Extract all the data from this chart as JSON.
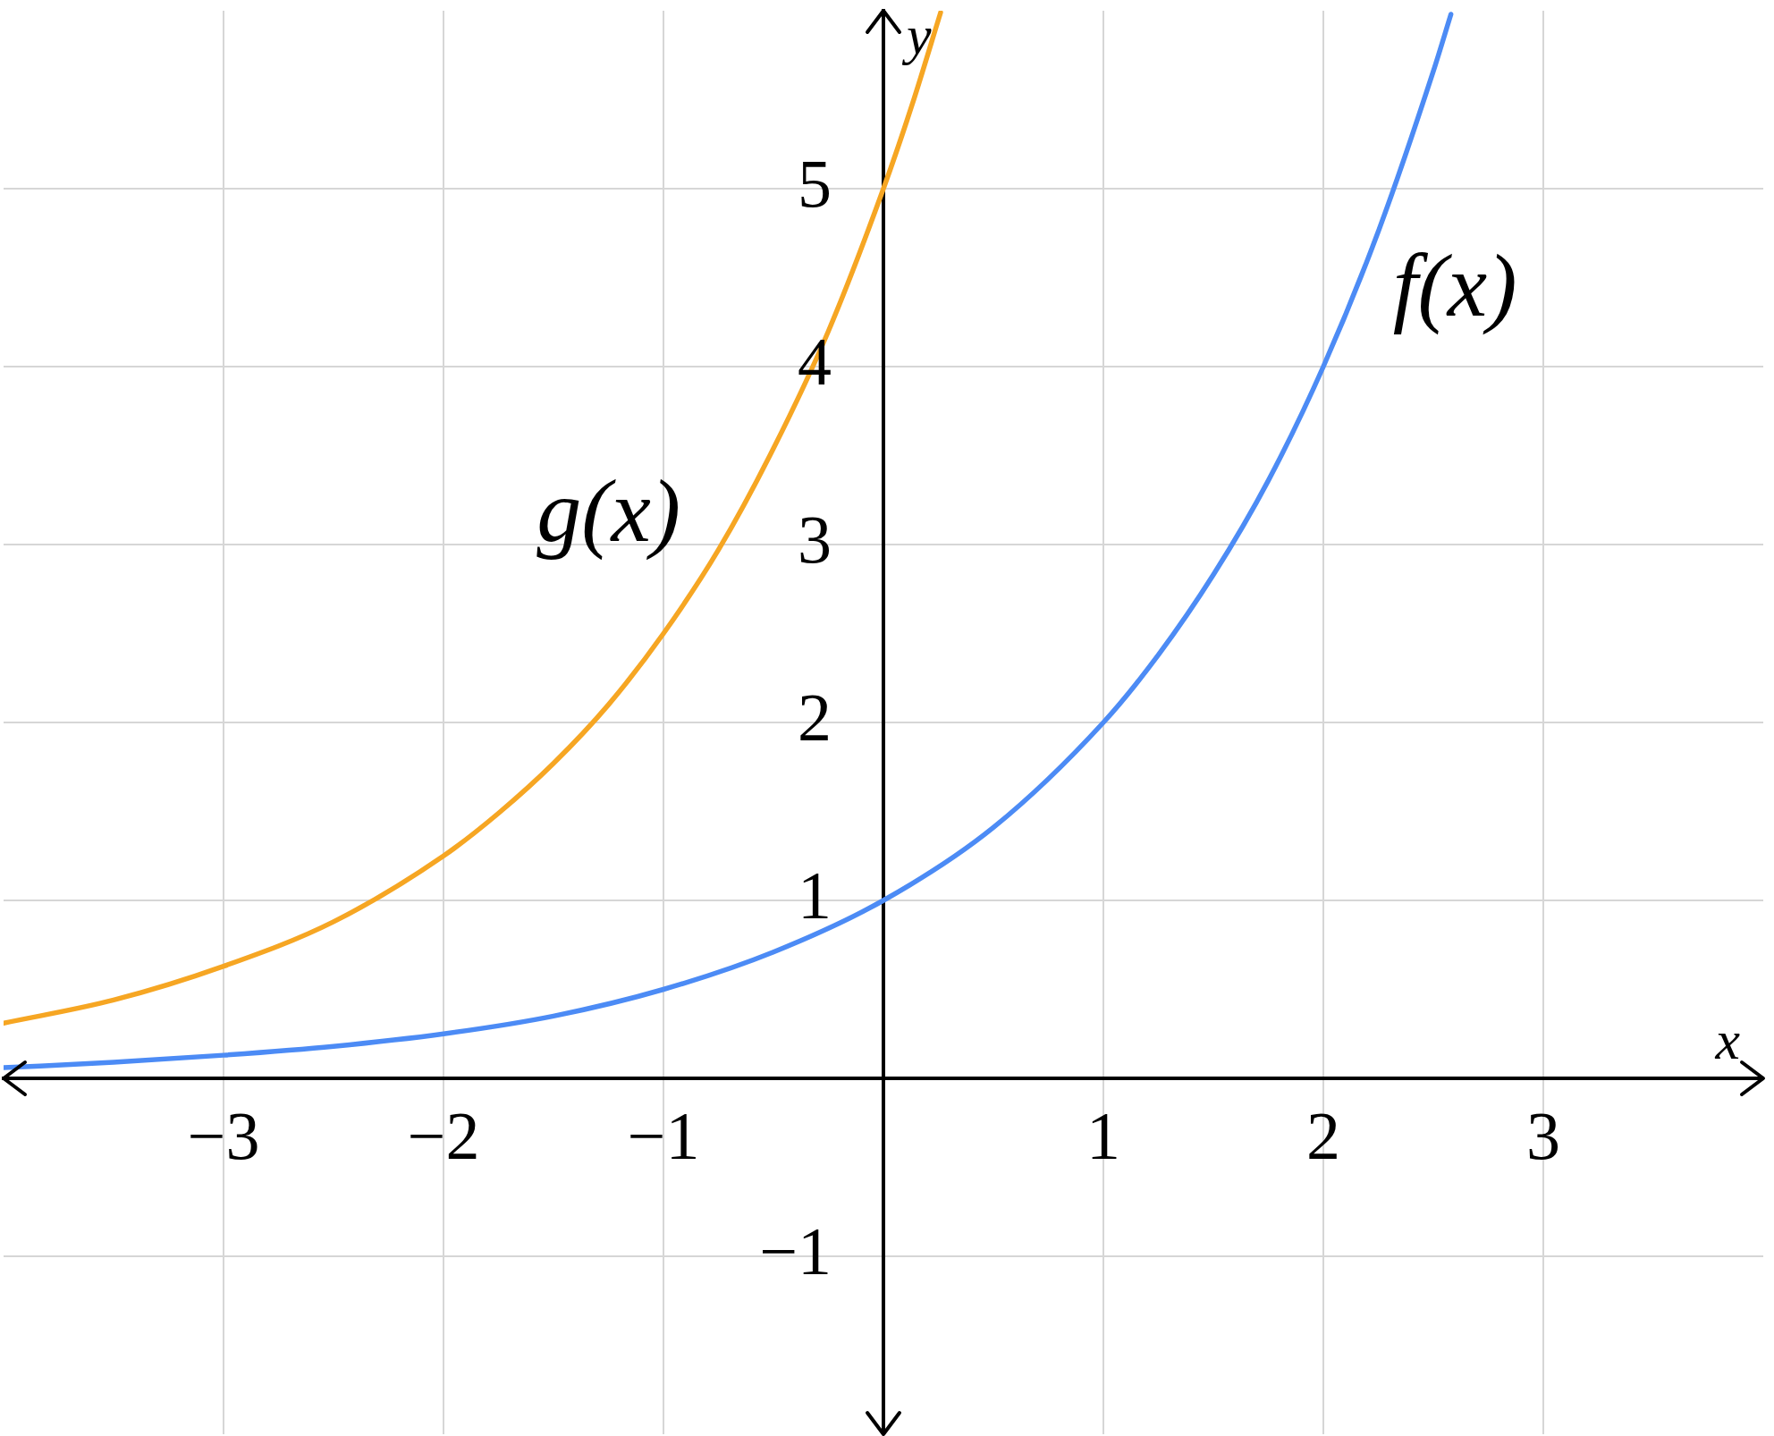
{
  "chart_data": {
    "type": "line",
    "xlabel": "x",
    "ylabel": "y",
    "xlim": [
      -4,
      4
    ],
    "ylim": [
      -2,
      6
    ],
    "xticks": [
      {
        "value": -3,
        "label": "−3"
      },
      {
        "value": -2,
        "label": "−2"
      },
      {
        "value": -1,
        "label": "−1"
      },
      1,
      2,
      3
    ],
    "yticks": [
      {
        "value": -1,
        "label": "−1"
      },
      1,
      2,
      3,
      4,
      5
    ],
    "grid": true,
    "series": [
      {
        "name": "f(x)",
        "color": "#4c8bf5",
        "x": [
          -4,
          -3.5,
          -3,
          -2.5,
          -2,
          -1.5,
          -1,
          -0.5,
          0,
          0.5,
          1,
          1.25,
          1.5,
          1.75,
          2,
          2.25,
          2.5,
          2.58
        ],
        "values": [
          0.06,
          0.09,
          0.13,
          0.18,
          0.25,
          0.35,
          0.5,
          0.71,
          1,
          1.41,
          2,
          2.38,
          2.83,
          3.36,
          4,
          4.76,
          5.66,
          5.98
        ]
      },
      {
        "name": "g(x)",
        "color": "#f6a623",
        "x": [
          -4,
          -3.5,
          -3,
          -2.5,
          -2,
          -1.75,
          -1.5,
          -1.25,
          -1,
          -0.75,
          -0.5,
          -0.25,
          0,
          0.13,
          0.26
        ],
        "values": [
          0.31,
          0.44,
          0.63,
          0.88,
          1.25,
          1.49,
          1.77,
          2.1,
          2.5,
          2.97,
          3.54,
          4.2,
          5,
          5.47,
          5.99
        ]
      }
    ]
  }
}
